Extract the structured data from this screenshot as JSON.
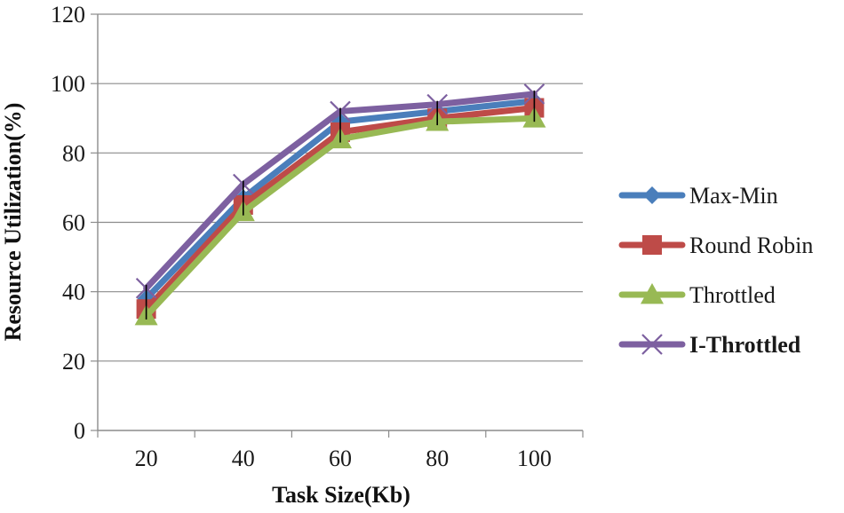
{
  "chart_data": {
    "type": "line",
    "title": "",
    "xlabel": "Task Size(Kb)",
    "ylabel": "Resource Utilization(%)",
    "categories": [
      "20",
      "40",
      "60",
      "80",
      "100"
    ],
    "ylim": [
      0,
      120
    ],
    "yticks": [
      0,
      20,
      40,
      60,
      80,
      100,
      120
    ],
    "grid": true,
    "legend_position": "right",
    "series": [
      {
        "name": "Max-Min",
        "values": [
          38,
          67,
          89,
          92,
          95
        ],
        "color": "#4A7EBB",
        "marker": "diamond",
        "bold": false
      },
      {
        "name": "Round Robin",
        "values": [
          35,
          65,
          86,
          90,
          93
        ],
        "color": "#BE4B48",
        "marker": "square",
        "bold": false
      },
      {
        "name": "Throttled",
        "values": [
          33,
          63,
          84,
          89,
          90
        ],
        "color": "#98B954",
        "marker": "triangle",
        "bold": false
      },
      {
        "name": "I-Throttled",
        "values": [
          41,
          71,
          92,
          94,
          97
        ],
        "color": "#7D60A0",
        "marker": "x",
        "bold": true
      }
    ]
  }
}
